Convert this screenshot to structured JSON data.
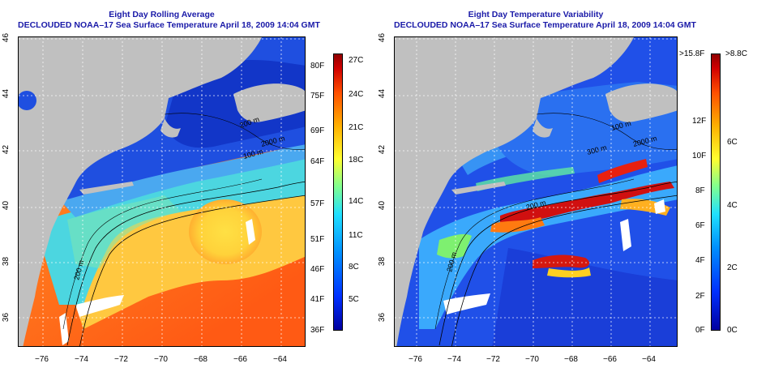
{
  "left_panel": {
    "title_line1": "Eight Day Rolling Average",
    "title_line2": "DECLOUDED NOAA–17 Sea Surface Temperature April 18, 2009 14:04 GMT",
    "colorbar_f_labels": [
      "80F",
      "75F",
      "69F",
      "64F",
      "57F",
      "51F",
      "46F",
      "41F",
      "36F"
    ],
    "colorbar_c_labels": [
      "27C",
      "24C",
      "21C",
      "18C",
      "14C",
      "11C",
      "8C",
      "5C"
    ],
    "contour_labels": [
      "200 m",
      "2000 m",
      "200 m",
      "100 m"
    ]
  },
  "right_panel": {
    "title_line1": "Eight Day Temperature Variability",
    "title_line2": "DECLOUDED NOAA–17 Sea Surface Temperature April 18, 2009 14:04 GMT",
    "colorbar_f_labels": [
      ">15.8F",
      "12F",
      "10F",
      "8F",
      "6F",
      "4F",
      "2F",
      "0F"
    ],
    "colorbar_c_labels": [
      ">8.8C",
      "6C",
      "4C",
      "2C",
      "0C"
    ],
    "contour_labels": [
      "100 m",
      "300 m",
      "2000 m",
      "200 m",
      "200 m"
    ]
  },
  "axes": {
    "lon_labels": [
      "−76",
      "−74",
      "−72",
      "−70",
      "−68",
      "−66",
      "−64"
    ],
    "lat_labels": [
      "46",
      "44",
      "42",
      "40",
      "38",
      "36"
    ]
  },
  "colors": {
    "title": "#1a1aa8",
    "land": "#c0c0c0"
  }
}
